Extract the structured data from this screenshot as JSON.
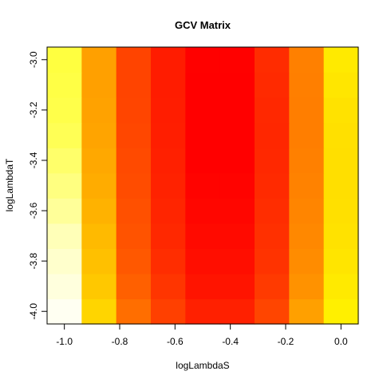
{
  "chart_data": {
    "type": "heatmap",
    "title": "GCV Matrix",
    "xlabel": "logLambdaS",
    "ylabel": "logLambdaT",
    "x": [
      -1.0,
      -0.875,
      -0.75,
      -0.625,
      -0.5,
      -0.375,
      -0.25,
      -0.125,
      0.0
    ],
    "y": [
      -4.0,
      -3.9,
      -3.8,
      -3.7,
      -3.6,
      -3.5,
      -3.4,
      -3.3,
      -3.2,
      -3.1,
      -3.0
    ],
    "xlim": [
      -1.0625,
      0.0625
    ],
    "ylim": [
      -4.05,
      -2.95
    ],
    "x_ticks": [
      -1.0,
      -0.8,
      -0.6,
      -0.4,
      -0.2,
      0.0
    ],
    "x_tick_labels": [
      "-1.0",
      "-0.8",
      "-0.6",
      "-0.4",
      "-0.2",
      "0.0"
    ],
    "y_ticks": [
      -4.0,
      -3.8,
      -3.6,
      -3.4,
      -3.2,
      -3.0
    ],
    "y_tick_labels": [
      "-4.0",
      "-3.8",
      "-3.6",
      "-3.4",
      "-3.2",
      "-3.0"
    ],
    "grid": false,
    "colormap": "heat.colors",
    "cell_colors": [
      [
        "#FFFFF2",
        "#FFD500",
        "#FF6E00",
        "#FF4000",
        "#FF2000",
        "#FF2000",
        "#FF4500",
        "#FFA000",
        "#FFF000"
      ],
      [
        "#FFFFDD",
        "#FFC800",
        "#FF6000",
        "#FF3500",
        "#FF1400",
        "#FF1400",
        "#FF3A00",
        "#FF9200",
        "#FFEA00"
      ],
      [
        "#FFFFCC",
        "#FFC000",
        "#FF5800",
        "#FF2D00",
        "#FF0E00",
        "#FF0E00",
        "#FF3300",
        "#FF8C00",
        "#FFE500"
      ],
      [
        "#FFFFB8",
        "#FFBA00",
        "#FF5300",
        "#FF2800",
        "#FF0A00",
        "#FF0A00",
        "#FF3000",
        "#FF8800",
        "#FFE200"
      ],
      [
        "#FFFF99",
        "#FFB200",
        "#FF5000",
        "#FF2500",
        "#FF0600",
        "#FF0600",
        "#FF2D00",
        "#FF8500",
        "#FFE000"
      ],
      [
        "#FFFF80",
        "#FFAC00",
        "#FF4C00",
        "#FF2200",
        "#FF0300",
        "#FF0300",
        "#FF2A00",
        "#FF8200",
        "#FFDF00"
      ],
      [
        "#FFFF6A",
        "#FFA800",
        "#FF4A00",
        "#FF2000",
        "#FF0000",
        "#FF0000",
        "#FF2800",
        "#FF8000",
        "#FFDF00"
      ],
      [
        "#FFFF55",
        "#FFA400",
        "#FF4700",
        "#FF1E00",
        "#FF0000",
        "#FF0000",
        "#FF2700",
        "#FF7E00",
        "#FFE000"
      ],
      [
        "#FFFF4A",
        "#FFA200",
        "#FF4500",
        "#FF1D00",
        "#FF0000",
        "#FF0000",
        "#FF2800",
        "#FF7E00",
        "#FFE200"
      ],
      [
        "#FFFF45",
        "#FFA000",
        "#FF4400",
        "#FF1C00",
        "#FF0000",
        "#FF0000",
        "#FF2A00",
        "#FF7F00",
        "#FFE600"
      ],
      [
        "#FFFF40",
        "#FFA000",
        "#FF4400",
        "#FF1C00",
        "#FF0100",
        "#FF0100",
        "#FF2C00",
        "#FF8000",
        "#FFEA00"
      ]
    ]
  }
}
